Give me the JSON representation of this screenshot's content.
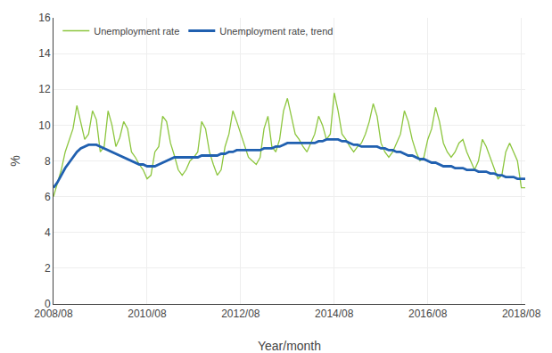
{
  "chart_data": {
    "type": "line",
    "xlabel": "Year/month",
    "ylabel": "%",
    "categories": [
      "2008/08",
      null,
      null,
      null,
      null,
      null,
      null,
      null,
      null,
      null,
      null,
      null,
      null,
      null,
      null,
      null,
      null,
      null,
      null,
      null,
      null,
      null,
      null,
      null,
      "2010/08",
      null,
      null,
      null,
      null,
      null,
      null,
      null,
      null,
      null,
      null,
      null,
      null,
      null,
      null,
      null,
      null,
      null,
      null,
      null,
      null,
      null,
      null,
      null,
      "2012/08",
      null,
      null,
      null,
      null,
      null,
      null,
      null,
      null,
      null,
      null,
      null,
      null,
      null,
      null,
      null,
      null,
      null,
      null,
      null,
      null,
      null,
      null,
      null,
      "2014/08",
      null,
      null,
      null,
      null,
      null,
      null,
      null,
      null,
      null,
      null,
      null,
      null,
      null,
      null,
      null,
      null,
      null,
      null,
      null,
      null,
      null,
      null,
      null,
      "2016/08",
      null,
      null,
      null,
      null,
      null,
      null,
      null,
      null,
      null,
      null,
      null,
      null,
      null,
      null,
      null,
      null,
      null,
      null,
      null,
      null,
      null,
      null,
      null,
      "2018/08",
      null
    ],
    "ylim": [
      0,
      16
    ],
    "yticks": [
      0,
      2,
      4,
      6,
      8,
      10,
      12,
      14,
      16
    ],
    "grid": true,
    "legend": "upper left",
    "series": [
      {
        "name": "Unemployment rate",
        "color": "#8dc63f",
        "values": [
          6.0,
          6.8,
          7.5,
          8.5,
          9.2,
          9.8,
          11.1,
          10.2,
          9.2,
          9.5,
          10.8,
          10.3,
          8.5,
          8.8,
          10.8,
          10.0,
          8.8,
          9.3,
          10.2,
          9.8,
          8.5,
          8.2,
          7.8,
          7.5,
          7.0,
          7.2,
          8.5,
          8.8,
          10.5,
          10.2,
          9.0,
          8.3,
          7.5,
          7.2,
          7.5,
          8.0,
          8.2,
          8.5,
          10.2,
          9.8,
          8.5,
          7.8,
          7.2,
          7.5,
          8.8,
          9.5,
          10.8,
          10.2,
          9.5,
          8.8,
          8.2,
          8.0,
          7.8,
          8.2,
          9.8,
          10.5,
          8.8,
          8.5,
          9.2,
          10.8,
          11.5,
          10.5,
          9.5,
          9.2,
          8.8,
          8.5,
          9.0,
          9.5,
          10.5,
          10.0,
          9.2,
          9.5,
          11.8,
          10.8,
          9.5,
          9.2,
          8.8,
          8.5,
          8.8,
          9.0,
          9.5,
          10.2,
          11.2,
          10.5,
          9.0,
          8.5,
          8.2,
          8.5,
          9.0,
          9.5,
          10.8,
          10.2,
          9.2,
          8.5,
          8.0,
          8.2,
          9.2,
          9.8,
          11.0,
          10.2,
          9.0,
          8.5,
          8.2,
          8.5,
          9.0,
          9.2,
          8.5,
          8.0,
          7.5,
          8.0,
          9.2,
          8.8,
          8.2,
          7.5,
          7.0,
          7.2,
          8.5,
          9.0,
          8.5,
          8.0,
          6.5,
          6.5
        ]
      },
      {
        "name": "Unemployment rate, trend",
        "color": "#2060b0",
        "values": [
          6.5,
          6.8,
          7.2,
          7.6,
          7.9,
          8.2,
          8.5,
          8.7,
          8.8,
          8.9,
          8.9,
          8.9,
          8.8,
          8.7,
          8.6,
          8.5,
          8.4,
          8.3,
          8.2,
          8.1,
          8.0,
          7.9,
          7.8,
          7.8,
          7.7,
          7.7,
          7.7,
          7.8,
          7.9,
          8.0,
          8.1,
          8.2,
          8.2,
          8.2,
          8.2,
          8.2,
          8.2,
          8.2,
          8.3,
          8.3,
          8.3,
          8.3,
          8.3,
          8.4,
          8.4,
          8.5,
          8.5,
          8.6,
          8.6,
          8.6,
          8.6,
          8.6,
          8.6,
          8.6,
          8.7,
          8.7,
          8.7,
          8.8,
          8.8,
          8.9,
          9.0,
          9.0,
          9.0,
          9.0,
          9.0,
          9.0,
          9.0,
          9.0,
          9.1,
          9.1,
          9.2,
          9.2,
          9.2,
          9.2,
          9.1,
          9.1,
          9.0,
          8.9,
          8.9,
          8.8,
          8.8,
          8.8,
          8.8,
          8.8,
          8.7,
          8.7,
          8.6,
          8.6,
          8.5,
          8.5,
          8.4,
          8.3,
          8.3,
          8.2,
          8.1,
          8.1,
          8.0,
          7.9,
          7.9,
          7.8,
          7.7,
          7.7,
          7.7,
          7.6,
          7.6,
          7.6,
          7.5,
          7.5,
          7.5,
          7.4,
          7.4,
          7.4,
          7.3,
          7.3,
          7.2,
          7.2,
          7.1,
          7.1,
          7.1,
          7.0,
          7.0,
          7.0
        ]
      }
    ]
  }
}
